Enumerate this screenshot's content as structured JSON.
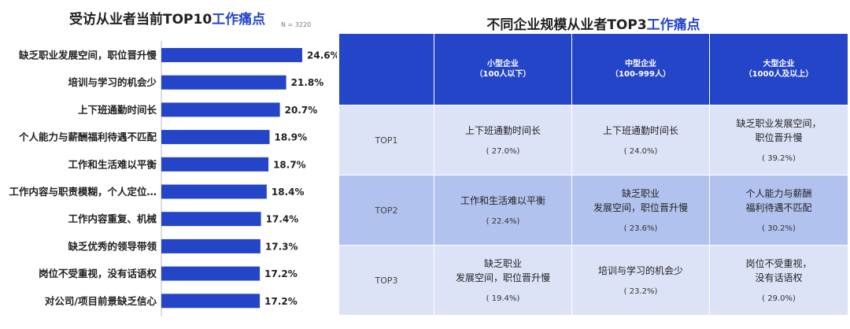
{
  "left_chart": {
    "title_prefix": "受访从业者当前TOP10",
    "title_highlight": "工作痛点",
    "sample_note": "N = 3220"
  },
  "right_table": {
    "title_prefix": "不同企业规模从业者TOP3",
    "title_highlight": "工作痛点",
    "columns": [
      {
        "name": "小型企业",
        "range": "（100人以下）"
      },
      {
        "name": "中型企业",
        "range": "（100-999人）"
      },
      {
        "name": "大型企业",
        "range": "（1000人及以上）"
      }
    ],
    "rows": [
      {
        "rank": "TOP1",
        "cells": [
          {
            "text": "上下班通勤时间长",
            "pct": "( 27.0%)"
          },
          {
            "text": "上下班通勤时间长",
            "pct": "( 24.0%)"
          },
          {
            "text": "缺乏职业发展空间，\n职位晋升慢",
            "pct": "( 39.2%)"
          }
        ]
      },
      {
        "rank": "TOP2",
        "cells": [
          {
            "text": "工作和生活难以平衡",
            "pct": "( 22.4%)"
          },
          {
            "text": "缺乏职业\n发展空间，职位晋升慢",
            "pct": "( 23.6%)"
          },
          {
            "text": "个人能力与薪酬\n福利待遇不匹配",
            "pct": "( 30.2%)"
          }
        ]
      },
      {
        "rank": "TOP3",
        "cells": [
          {
            "text": "缺乏职业\n发展空间，职位晋升慢",
            "pct": "( 19.4%)"
          },
          {
            "text": "培训与学习的机会少",
            "pct": "( 23.2%)"
          },
          {
            "text": "岗位不受重视，\n没有话语权",
            "pct": "( 29.0%)"
          }
        ]
      }
    ]
  },
  "colors": {
    "bar": "#2545c8",
    "header": "#2545c8",
    "row_light": "#dce3f7",
    "row_mid": "#b2c2ee",
    "axis": "#bbbbbb"
  },
  "chart_data": {
    "type": "bar",
    "orientation": "horizontal",
    "title": "受访从业者当前TOP10工作痛点",
    "categories": [
      "缺乏职业发展空间，职位晋升慢",
      "培训与学习的机会少",
      "上下班通勤时间长",
      "个人能力与薪酬福利待遇不匹配",
      "工作和生活难以平衡",
      "工作内容与职责模糊，个人定位…",
      "工作内容重复、机械",
      "缺乏优秀的领导带领",
      "岗位不受重视，没有话语权",
      "对公司/项目前景缺乏信心"
    ],
    "values": [
      24.6,
      21.8,
      20.7,
      18.9,
      18.7,
      18.4,
      17.4,
      17.3,
      17.2,
      17.2
    ],
    "value_labels": [
      "24.6%",
      "21.8%",
      "20.7%",
      "18.9%",
      "18.7%",
      "18.4%",
      "17.4%",
      "17.3%",
      "17.2%",
      "17.2%"
    ],
    "unit": "%",
    "xlim": [
      0,
      24.6
    ]
  }
}
